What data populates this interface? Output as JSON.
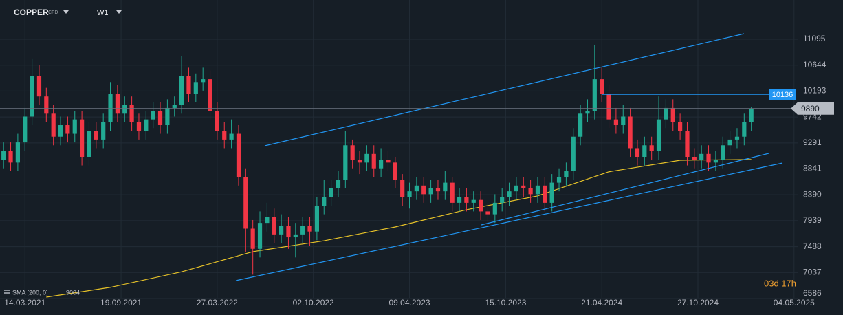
{
  "header": {
    "symbol": "COPPER",
    "kind": "CFD",
    "timeframe": "W1"
  },
  "countdown": "03d 17h",
  "chart_data": {
    "type": "candlestick",
    "colors": {
      "up": "#22ab94",
      "down": "#f23645",
      "sma": "#e6c229",
      "level": "#2196f3",
      "grid": "#222c36"
    },
    "xlim": [
      -0.5,
      111.5
    ],
    "xticks": [
      {
        "value": 3,
        "label": "14.03.2021"
      },
      {
        "value": 16.5,
        "label": "19.09.2021"
      },
      {
        "value": 30,
        "label": "27.03.2022"
      },
      {
        "value": 43.5,
        "label": "02.10.2022"
      },
      {
        "value": 57,
        "label": "09.04.2023"
      },
      {
        "value": 70.5,
        "label": "15.10.2023"
      },
      {
        "value": 84,
        "label": "21.04.2024"
      },
      {
        "value": 97.5,
        "label": "27.10.2024"
      },
      {
        "value": 111,
        "label": "04.05.2025"
      }
    ],
    "ylim": [
      6586,
      11777
    ],
    "yticks": [
      6586,
      7037,
      7488,
      7939,
      8390,
      8841,
      9291,
      9742,
      10193,
      10644,
      11095
    ],
    "grid": true,
    "open": [
      9000,
      9150,
      8950,
      9300,
      9750,
      10450,
      10100,
      9800,
      9400,
      9600,
      9450,
      9700,
      9050,
      9500,
      9350,
      9650,
      10150,
      9800,
      9950,
      9650,
      9500,
      9700,
      9850,
      9600,
      9900,
      9950,
      10450,
      10150,
      10350,
      10400,
      9850,
      9500,
      9350,
      9450,
      8700,
      7800,
      7450,
      7900,
      8000,
      7700,
      7850,
      7650,
      7700,
      7850,
      7750,
      8200,
      8350,
      8500,
      8650,
      9250,
      9000,
      8950,
      9100,
      8850,
      9000,
      8950,
      8650,
      8350,
      8450,
      8550,
      8400,
      8500,
      8450,
      8600,
      8250,
      8350,
      8250,
      8300,
      8100,
      8050,
      8250,
      8350,
      8450,
      8550,
      8500,
      8400,
      8550,
      8250,
      8600,
      8700,
      8800,
      9400,
      9800,
      9850,
      10400,
      10150,
      9700,
      9600,
      9750,
      9200,
      9050,
      9250,
      9150,
      9700,
      9900,
      9650,
      9500,
      9050,
      9000,
      9100,
      8950,
      9000,
      9250,
      9350,
      9400,
      9650
    ],
    "high": [
      9300,
      9300,
      9450,
      9900,
      10750,
      10650,
      10250,
      9950,
      9750,
      9750,
      9850,
      9850,
      9650,
      9650,
      9800,
      10350,
      10300,
      10100,
      10100,
      9800,
      9850,
      10000,
      10000,
      10050,
      10100,
      10800,
      10600,
      10500,
      10600,
      10550,
      10000,
      9650,
      9700,
      9600,
      8850,
      7950,
      8100,
      8250,
      8150,
      8050,
      8000,
      7900,
      8000,
      8000,
      8350,
      8650,
      8650,
      8800,
      9500,
      9350,
      9150,
      9250,
      9250,
      9200,
      9150,
      9050,
      8750,
      8600,
      8700,
      8700,
      8650,
      8650,
      8800,
      8700,
      8500,
      8500,
      8450,
      8450,
      8250,
      8400,
      8500,
      8600,
      8700,
      8700,
      8650,
      8700,
      8700,
      8750,
      8850,
      8950,
      9550,
      9950,
      10050,
      11000,
      10600,
      10300,
      9900,
      9950,
      9900,
      9350,
      9400,
      9400,
      10100,
      10050,
      10050,
      9800,
      9650,
      9200,
      9250,
      9250,
      9150,
      9400,
      9500,
      9550,
      9800,
      9920
    ],
    "low": [
      8850,
      8800,
      8800,
      9150,
      9600,
      9950,
      9650,
      9250,
      9250,
      9300,
      9300,
      8900,
      8900,
      9200,
      9200,
      9500,
      9650,
      9650,
      9500,
      9350,
      9350,
      9550,
      9450,
      9450,
      9750,
      9800,
      10000,
      10000,
      10200,
      9700,
      9350,
      9200,
      9200,
      8550,
      7400,
      7000,
      7300,
      7750,
      7550,
      7550,
      7450,
      7300,
      7550,
      7500,
      7600,
      8050,
      8200,
      8350,
      8500,
      8850,
      8750,
      8800,
      8700,
      8700,
      8800,
      8500,
      8200,
      8150,
      8300,
      8250,
      8250,
      8300,
      8300,
      8100,
      8100,
      8100,
      8100,
      7950,
      7850,
      7900,
      8100,
      8200,
      8300,
      8350,
      8250,
      8250,
      8100,
      8100,
      8450,
      8550,
      8650,
      9250,
      9650,
      9700,
      10000,
      9550,
      9450,
      9450,
      9050,
      8900,
      8900,
      9000,
      9000,
      9550,
      9500,
      9350,
      8900,
      8850,
      8850,
      8800,
      8800,
      8850,
      9100,
      9200,
      9250,
      9500
    ],
    "close": [
      9150,
      8950,
      9300,
      9750,
      10450,
      10100,
      9800,
      9400,
      9600,
      9450,
      9700,
      9050,
      9500,
      9350,
      9650,
      10150,
      9800,
      9950,
      9650,
      9500,
      9700,
      9850,
      9600,
      9900,
      9950,
      10450,
      10150,
      10350,
      10400,
      9850,
      9500,
      9350,
      9450,
      8700,
      7800,
      7450,
      7900,
      8000,
      7700,
      7850,
      7650,
      7700,
      7850,
      7750,
      8200,
      8350,
      8500,
      8650,
      9250,
      9000,
      8950,
      9100,
      8850,
      9000,
      8950,
      8650,
      8350,
      8450,
      8550,
      8400,
      8500,
      8450,
      8600,
      8250,
      8350,
      8250,
      8300,
      8100,
      8050,
      8250,
      8350,
      8450,
      8550,
      8500,
      8400,
      8550,
      8250,
      8600,
      8700,
      8800,
      9400,
      9800,
      9850,
      10400,
      10150,
      9700,
      9600,
      9750,
      9200,
      9050,
      9250,
      9150,
      9700,
      9900,
      9650,
      9500,
      9050,
      9000,
      9100,
      8950,
      9000,
      9250,
      9350,
      9400,
      9650,
      9890
    ],
    "sma": {
      "name": "SMA [200, 0]",
      "x": [
        6,
        15,
        25,
        35,
        45,
        55,
        65,
        75,
        85,
        95,
        105
      ],
      "values": [
        6610,
        6780,
        7050,
        7400,
        7590,
        7830,
        8130,
        8370,
        8790,
        8990,
        9004
      ]
    },
    "level": 10136
  }
}
